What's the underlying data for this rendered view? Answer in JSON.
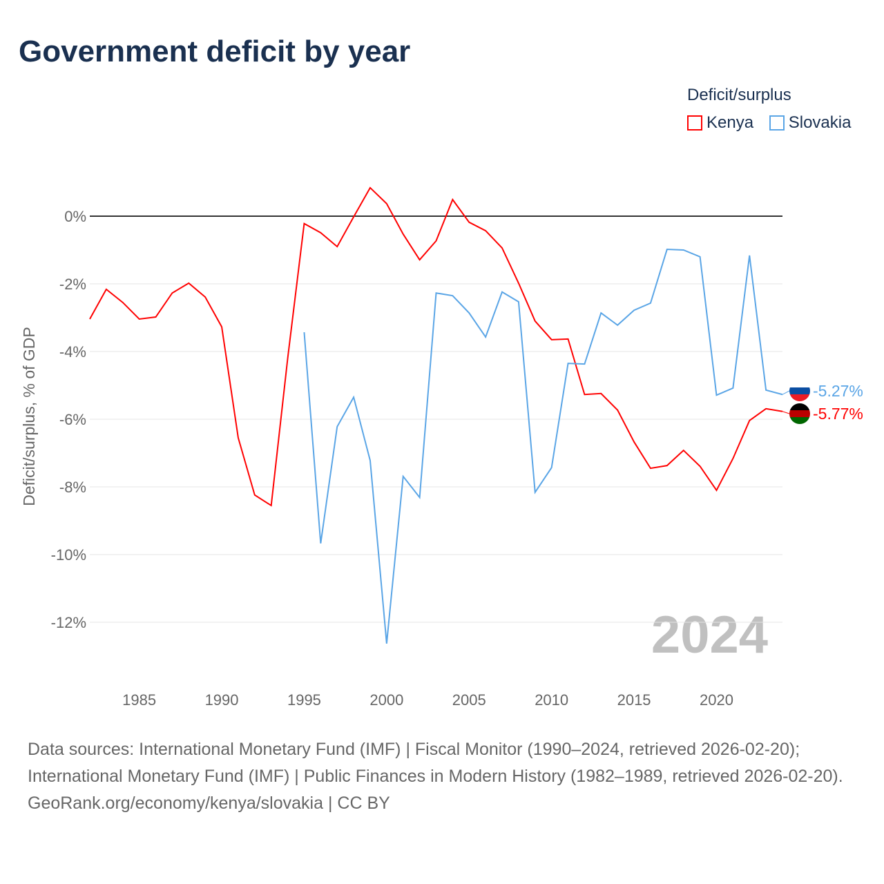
{
  "title": "Government deficit by year",
  "legend": {
    "title": "Deficit/surplus",
    "items": [
      {
        "label": "Kenya",
        "color": "#ff0000"
      },
      {
        "label": "Slovakia",
        "color": "#5aa5e6"
      }
    ]
  },
  "footer": {
    "sources": "Data sources: International Monetary Fund (IMF) | Fiscal Monitor (1990–2024, retrieved 2026-02-20); International Monetary Fund (IMF) | Public Finances in Modern History (1982–1989, retrieved 2026-02-20).",
    "credit": "GeoRank.org/economy/kenya/slovakia | CC BY"
  },
  "chart_data": {
    "type": "line",
    "title": "Government deficit by year",
    "ylabel": "Deficit/surplus, % of GDP",
    "xlim": [
      1982,
      2024
    ],
    "ylim": [
      -13.8,
      1.9
    ],
    "xticks": [
      1985,
      1990,
      1995,
      2000,
      2005,
      2010,
      2015,
      2020
    ],
    "yticks": [
      0,
      -2,
      -4,
      -6,
      -8,
      -10,
      -12
    ],
    "ytick_labels": [
      "0%",
      "-2%",
      "-4%",
      "-6%",
      "-8%",
      "-10%",
      "-12%"
    ],
    "year_label": "2024",
    "series": [
      {
        "name": "Kenya",
        "color": "#ff0000",
        "end_label": "-5.77%",
        "x": [
          1982,
          1983,
          1984,
          1985,
          1986,
          1987,
          1988,
          1989,
          1990,
          1991,
          1992,
          1993,
          1994,
          1995,
          1996,
          1997,
          1998,
          1999,
          2000,
          2001,
          2002,
          2003,
          2004,
          2005,
          2006,
          2007,
          2008,
          2009,
          2010,
          2011,
          2012,
          2013,
          2014,
          2015,
          2016,
          2017,
          2018,
          2019,
          2020,
          2021,
          2022,
          2023,
          2024
        ],
        "values": [
          -3.04,
          -2.16,
          -2.55,
          -3.04,
          -2.98,
          -2.27,
          -1.98,
          -2.39,
          -3.27,
          -6.55,
          -8.24,
          -8.55,
          -4.2,
          -0.22,
          -0.49,
          -0.9,
          -0.02,
          0.84,
          0.37,
          -0.53,
          -1.29,
          -0.73,
          0.49,
          -0.18,
          -0.43,
          -0.94,
          -1.98,
          -3.1,
          -3.65,
          -3.63,
          -5.27,
          -5.24,
          -5.73,
          -6.67,
          -7.45,
          -7.37,
          -6.92,
          -7.39,
          -8.1,
          -7.16,
          -6.04,
          -5.69,
          -5.77
        ]
      },
      {
        "name": "Slovakia",
        "color": "#5aa5e6",
        "end_label": "-5.27%",
        "x": [
          1995,
          1996,
          1997,
          1998,
          1999,
          2000,
          2001,
          2002,
          2003,
          2004,
          2005,
          2006,
          2007,
          2008,
          2009,
          2010,
          2011,
          2012,
          2013,
          2014,
          2015,
          2016,
          2017,
          2018,
          2019,
          2020,
          2021,
          2022,
          2023,
          2024
        ],
        "values": [
          -3.43,
          -9.67,
          -6.22,
          -5.35,
          -7.22,
          -12.63,
          -7.69,
          -8.31,
          -2.27,
          -2.35,
          -2.86,
          -3.57,
          -2.24,
          -2.53,
          -8.16,
          -7.43,
          -4.35,
          -4.37,
          -2.86,
          -3.22,
          -2.78,
          -2.57,
          -0.98,
          -1.0,
          -1.2,
          -5.29,
          -5.08,
          -1.16,
          -5.14,
          -5.27
        ]
      }
    ]
  }
}
